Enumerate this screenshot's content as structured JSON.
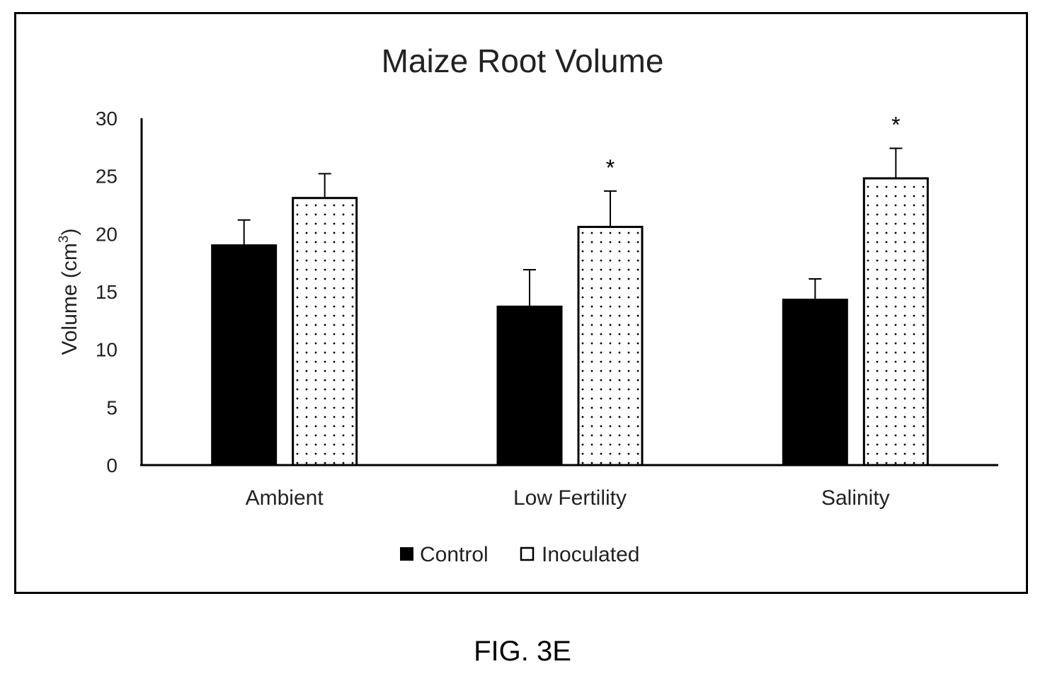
{
  "figure_caption": "FIG. 3E",
  "chart_data": {
    "type": "bar",
    "title": "Maize Root Volume",
    "ylabel_main": "Volume (cm",
    "ylabel_sup": "3",
    "ylabel_close": ")",
    "xlabel": "",
    "ylim": [
      0,
      30
    ],
    "yticks": [
      "0",
      "5",
      "10",
      "15",
      "20",
      "25",
      "30"
    ],
    "grid": false,
    "legend_position": "bottom",
    "categories": [
      "Ambient",
      "Low Fertility",
      "Salinity"
    ],
    "series": [
      {
        "name": "Control",
        "fill": "solid",
        "color": "#000000",
        "values": [
          19.0,
          13.7,
          14.3
        ],
        "errors": [
          2.2,
          3.2,
          1.8
        ],
        "annotations": [
          "",
          "",
          ""
        ]
      },
      {
        "name": "Inoculated",
        "fill": "dotted",
        "color": "#ffffff",
        "values": [
          23.1,
          20.6,
          24.8
        ],
        "errors": [
          2.1,
          3.1,
          2.6
        ],
        "annotations": [
          "",
          "*",
          "*"
        ]
      }
    ]
  }
}
